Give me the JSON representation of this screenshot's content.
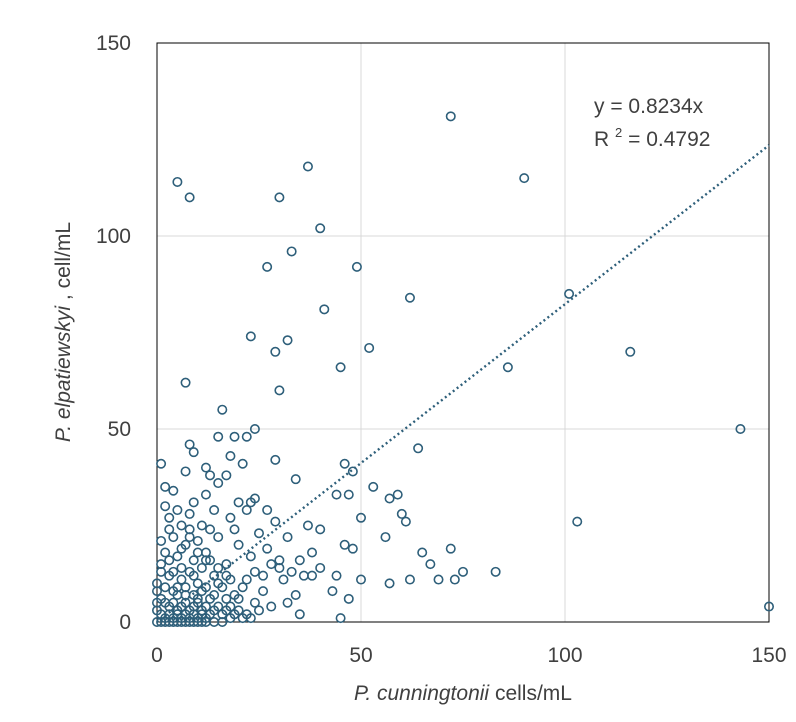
{
  "chart_data": {
    "type": "scatter",
    "xlabel_italic": "P. cunningtonii",
    "xlabel_rest": " cells/mL",
    "ylabel_italic": "P. elpatiewskyi",
    "ylabel_rest": ", cell/mL",
    "xlim": [
      0,
      150
    ],
    "ylim": [
      0,
      150
    ],
    "xticks": [
      0,
      50,
      100,
      150
    ],
    "yticks": [
      0,
      50,
      100,
      150
    ],
    "grid": true,
    "trendline": {
      "slope": 0.8234,
      "equation": "y = 0.8234x",
      "r2_prefix": "R",
      "r2_sup": "2",
      "r2_value": " = 0.4792"
    },
    "marker_color": "#2e5f7a",
    "points": [
      [
        5,
        114
      ],
      [
        8,
        110
      ],
      [
        30,
        110
      ],
      [
        37,
        118
      ],
      [
        72,
        131
      ],
      [
        90,
        115
      ],
      [
        33,
        96
      ],
      [
        40,
        102
      ],
      [
        27,
        92
      ],
      [
        49,
        92
      ],
      [
        62,
        84
      ],
      [
        101,
        85
      ],
      [
        41,
        81
      ],
      [
        23,
        74
      ],
      [
        32,
        73
      ],
      [
        52,
        71
      ],
      [
        29,
        70
      ],
      [
        116,
        70
      ],
      [
        45,
        66
      ],
      [
        86,
        66
      ],
      [
        7,
        62
      ],
      [
        30,
        60
      ],
      [
        16,
        55
      ],
      [
        143,
        50
      ],
      [
        24,
        50
      ],
      [
        8,
        46
      ],
      [
        15,
        48
      ],
      [
        19,
        48
      ],
      [
        22,
        48
      ],
      [
        9,
        44
      ],
      [
        18,
        43
      ],
      [
        21,
        41
      ],
      [
        29,
        42
      ],
      [
        46,
        41
      ],
      [
        64,
        45
      ],
      [
        1,
        41
      ],
      [
        12,
        40
      ],
      [
        13,
        38
      ],
      [
        15,
        36
      ],
      [
        17,
        38
      ],
      [
        7,
        39
      ],
      [
        48,
        39
      ],
      [
        2,
        35
      ],
      [
        4,
        34
      ],
      [
        12,
        33
      ],
      [
        34,
        37
      ],
      [
        53,
        35
      ],
      [
        59,
        33
      ],
      [
        57,
        32
      ],
      [
        44,
        33
      ],
      [
        47,
        33
      ],
      [
        20,
        31
      ],
      [
        23,
        31
      ],
      [
        24,
        32
      ],
      [
        2,
        30
      ],
      [
        5,
        29
      ],
      [
        9,
        31
      ],
      [
        3,
        27
      ],
      [
        8,
        28
      ],
      [
        14,
        29
      ],
      [
        18,
        27
      ],
      [
        22,
        29
      ],
      [
        27,
        29
      ],
      [
        60,
        28
      ],
      [
        3,
        24
      ],
      [
        6,
        25
      ],
      [
        8,
        24
      ],
      [
        11,
        25
      ],
      [
        13,
        24
      ],
      [
        19,
        24
      ],
      [
        25,
        23
      ],
      [
        29,
        26
      ],
      [
        37,
        25
      ],
      [
        40,
        24
      ],
      [
        50,
        27
      ],
      [
        61,
        26
      ],
      [
        103,
        26
      ],
      [
        1,
        21
      ],
      [
        4,
        22
      ],
      [
        7,
        20
      ],
      [
        10,
        21
      ],
      [
        15,
        22
      ],
      [
        20,
        20
      ],
      [
        27,
        19
      ],
      [
        32,
        22
      ],
      [
        48,
        19
      ],
      [
        56,
        22
      ],
      [
        72,
        19
      ],
      [
        2,
        18
      ],
      [
        5,
        17
      ],
      [
        9,
        16
      ],
      [
        12,
        18
      ],
      [
        17,
        15
      ],
      [
        23,
        17
      ],
      [
        30,
        16
      ],
      [
        38,
        18
      ],
      [
        46,
        20
      ],
      [
        65,
        18
      ],
      [
        44,
        12
      ],
      [
        50,
        11
      ],
      [
        57,
        10
      ],
      [
        62,
        11
      ],
      [
        67,
        15
      ],
      [
        69,
        11
      ],
      [
        73,
        11
      ],
      [
        75,
        13
      ],
      [
        83,
        13
      ],
      [
        43,
        8
      ],
      [
        47,
        6
      ],
      [
        45,
        1
      ],
      [
        150,
        4
      ],
      [
        35,
        2
      ],
      [
        40,
        14
      ],
      [
        1,
        13
      ],
      [
        3,
        12
      ],
      [
        6,
        11
      ],
      [
        8,
        13
      ],
      [
        10,
        10
      ],
      [
        14,
        12
      ],
      [
        18,
        11
      ],
      [
        21,
        9
      ],
      [
        26,
        8
      ],
      [
        31,
        11
      ],
      [
        34,
        7
      ],
      [
        36,
        12
      ],
      [
        2,
        9
      ],
      [
        4,
        8
      ],
      [
        5,
        7
      ],
      [
        7,
        9
      ],
      [
        9,
        7
      ],
      [
        11,
        8
      ],
      [
        13,
        6
      ],
      [
        16,
        9
      ],
      [
        20,
        6
      ],
      [
        24,
        5
      ],
      [
        28,
        4
      ],
      [
        32,
        5
      ],
      [
        1,
        6
      ],
      [
        2,
        5
      ],
      [
        3,
        4
      ],
      [
        4,
        5
      ],
      [
        5,
        3
      ],
      [
        6,
        4
      ],
      [
        7,
        5
      ],
      [
        8,
        3
      ],
      [
        9,
        4
      ],
      [
        10,
        5
      ],
      [
        11,
        3
      ],
      [
        12,
        4
      ],
      [
        13,
        2
      ],
      [
        14,
        3
      ],
      [
        15,
        4
      ],
      [
        16,
        2
      ],
      [
        17,
        3
      ],
      [
        18,
        4
      ],
      [
        19,
        2
      ],
      [
        20,
        3
      ],
      [
        22,
        2
      ],
      [
        25,
        3
      ],
      [
        1,
        2
      ],
      [
        2,
        1
      ],
      [
        3,
        2
      ],
      [
        4,
        1
      ],
      [
        5,
        2
      ],
      [
        6,
        1
      ],
      [
        7,
        2
      ],
      [
        8,
        1
      ],
      [
        9,
        2
      ],
      [
        10,
        1
      ],
      [
        11,
        2
      ],
      [
        12,
        1
      ],
      [
        0,
        0
      ],
      [
        1,
        0
      ],
      [
        2,
        0
      ],
      [
        3,
        0
      ],
      [
        4,
        0
      ],
      [
        5,
        0
      ],
      [
        6,
        0
      ],
      [
        7,
        0
      ],
      [
        8,
        0
      ],
      [
        9,
        0
      ],
      [
        10,
        0
      ],
      [
        11,
        0
      ],
      [
        12,
        0
      ],
      [
        14,
        0
      ],
      [
        16,
        0
      ],
      [
        18,
        1
      ],
      [
        21,
        1
      ],
      [
        23,
        1
      ],
      [
        0,
        3
      ],
      [
        0,
        5
      ],
      [
        0,
        8
      ],
      [
        0,
        10
      ],
      [
        1,
        15
      ],
      [
        3,
        16
      ],
      [
        6,
        14
      ],
      [
        9,
        12
      ],
      [
        11,
        14
      ],
      [
        13,
        16
      ],
      [
        15,
        14
      ],
      [
        17,
        12
      ],
      [
        6,
        19
      ],
      [
        8,
        22
      ],
      [
        10,
        18
      ],
      [
        12,
        16
      ],
      [
        4,
        13
      ],
      [
        5,
        9
      ],
      [
        7,
        7
      ],
      [
        10,
        6
      ],
      [
        12,
        9
      ],
      [
        14,
        7
      ],
      [
        15,
        10
      ],
      [
        17,
        6
      ],
      [
        19,
        7
      ],
      [
        22,
        11
      ],
      [
        24,
        13
      ],
      [
        26,
        12
      ],
      [
        28,
        15
      ],
      [
        30,
        14
      ],
      [
        33,
        13
      ],
      [
        35,
        16
      ],
      [
        38,
        12
      ]
    ]
  }
}
